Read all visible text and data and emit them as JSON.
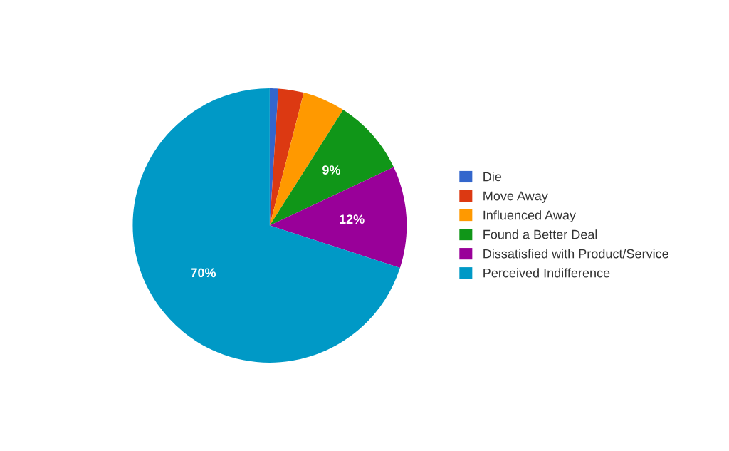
{
  "chart_data": {
    "type": "pie",
    "categories": [
      "Die",
      "Move Away",
      "Influenced Away",
      "Found a Better Deal",
      "Dissatisfied with Product/Service",
      "Perceived Indifference"
    ],
    "values": [
      1,
      3,
      5,
      9,
      12,
      70
    ],
    "colors": [
      "#3366cc",
      "#dc3912",
      "#ff9900",
      "#109618",
      "#990099",
      "#0099c6"
    ],
    "value_labels": [
      null,
      null,
      null,
      "9%",
      "12%",
      "70%"
    ],
    "legend": "right"
  }
}
